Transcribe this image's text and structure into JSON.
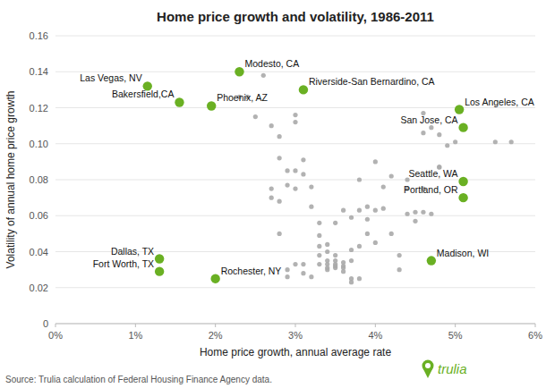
{
  "chart_data": {
    "type": "scatter",
    "title": "Home price growth and volatility, 1986-2011",
    "x_label": "Home price growth, annual average rate",
    "y_label": "Volatility of annual home price growth",
    "annotations": [
      "Source: Trulia calculation of Federal Housing Finance Agency data.",
      "trulia"
    ],
    "xlim": [
      0,
      0.06
    ],
    "ylim": [
      0,
      0.16
    ],
    "xticks": [
      {
        "value": 0,
        "label": "0%"
      },
      {
        "value": 0.01,
        "label": "1%"
      },
      {
        "value": 0.02,
        "label": "2%"
      },
      {
        "value": 0.03,
        "label": "3%"
      },
      {
        "value": 0.04,
        "label": "4%"
      },
      {
        "value": 0.05,
        "label": "5%"
      },
      {
        "value": 0.06,
        "label": "6%"
      }
    ],
    "yticks": [
      0,
      0.02,
      0.04,
      0.06,
      0.08,
      {
        "value": 0.1,
        "label": "0.10"
      },
      0.12,
      0.14,
      0.16
    ],
    "grid": true,
    "series": [
      {
        "color": "#aaaaaa",
        "x": [
          0.023,
          0.025,
          0.027,
          0.028,
          0.028,
          0.029,
          0.029,
          0.03,
          0.03,
          0.031,
          0.031,
          0.032,
          0.032,
          0.033,
          0.033,
          0.033,
          0.033,
          0.033,
          0.034,
          0.034,
          0.034,
          0.034,
          0.035,
          0.035,
          0.035,
          0.035,
          0.035,
          0.036,
          0.036,
          0.036,
          0.036,
          0.037,
          0.037,
          0.037,
          0.037,
          0.038,
          0.038,
          0.038,
          0.039,
          0.039,
          0.04,
          0.04,
          0.041,
          0.041,
          0.042,
          0.042,
          0.043,
          0.043,
          0.044,
          0.044,
          0.044,
          0.045,
          0.045,
          0.046,
          0.046,
          0.047,
          0.048,
          0.048,
          0.049,
          0.05,
          0.055,
          0.057,
          0.03,
          0.03,
          0.027,
          0.027,
          0.028,
          0.028,
          0.029,
          0.029,
          0.03,
          0.031,
          0.031,
          0.032,
          0.034,
          0.034,
          0.035,
          0.036,
          0.037,
          0.038,
          0.039,
          0.04,
          0.026,
          0.024,
          0.046,
          0.047,
          0.046,
          0.048
        ],
        "values": [
          0.126,
          0.115,
          0.11,
          0.104,
          0.092,
          0.085,
          0.077,
          0.075,
          0.085,
          0.091,
          0.083,
          0.076,
          0.065,
          0.056,
          0.049,
          0.043,
          0.038,
          0.033,
          0.035,
          0.033,
          0.031,
          0.03,
          0.031,
          0.033,
          0.032,
          0.035,
          0.038,
          0.032,
          0.034,
          0.031,
          0.029,
          0.035,
          0.041,
          0.025,
          0.023,
          0.043,
          0.025,
          0.063,
          0.065,
          0.058,
          0.063,
          0.09,
          0.076,
          0.064,
          0.082,
          0.05,
          0.03,
          0.038,
          0.075,
          0.061,
          0.08,
          0.057,
          0.062,
          0.075,
          0.117,
          0.109,
          0.087,
          0.105,
          0.099,
          0.101,
          0.101,
          0.101,
          0.116,
          0.112,
          0.075,
          0.07,
          0.068,
          0.05,
          0.03,
          0.026,
          0.033,
          0.033,
          0.028,
          0.026,
          0.044,
          0.04,
          0.056,
          0.063,
          0.059,
          0.08,
          0.05,
          0.045,
          0.138,
          0.126,
          0.106,
          0.061,
          0.062,
          0.087
        ]
      },
      {
        "color": "#6ab023",
        "labels": [
          "Las Vegas, NV",
          "Bakersfield,CA",
          "Phoenix, AZ",
          "Modesto, CA",
          "Riverside-San Bernardino, CA",
          "Los Angeles, CA",
          "San Jose, CA",
          "Seattle, WA",
          "Portland, OR",
          "Madison, WI",
          "Dallas, TX",
          "Fort Worth, TX",
          "Rochester, NY"
        ],
        "x": [
          0.0115,
          0.0155,
          0.0195,
          0.023,
          0.031,
          0.0505,
          0.051,
          0.051,
          0.051,
          0.047,
          0.013,
          0.013,
          0.02
        ],
        "values": [
          0.132,
          0.123,
          0.121,
          0.14,
          0.13,
          0.119,
          0.109,
          0.079,
          0.07,
          0.035,
          0.036,
          0.029,
          0.025
        ]
      }
    ]
  }
}
